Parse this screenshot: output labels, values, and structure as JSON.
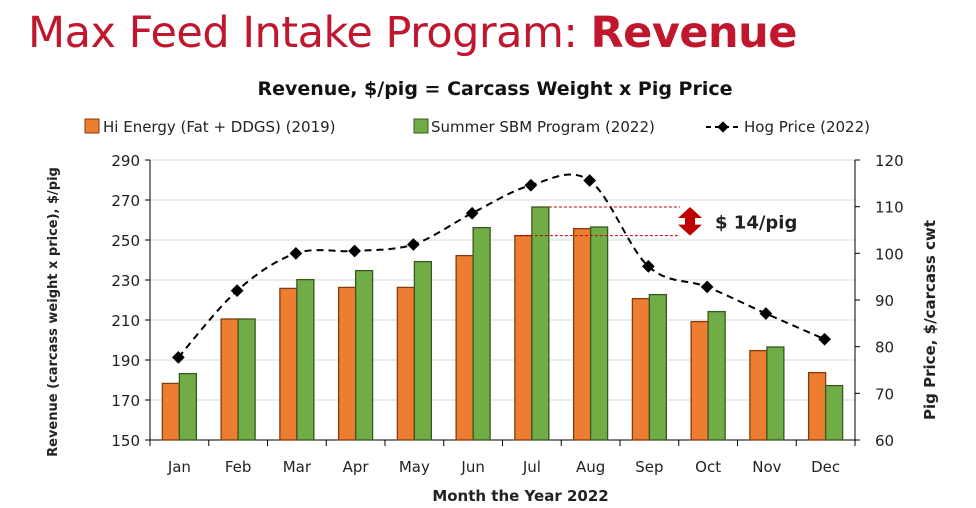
{
  "slide_title": {
    "prefix": "Max Feed Intake Program: ",
    "emphasis": "Revenue"
  },
  "colors": {
    "title": "#c0172f",
    "orange": "#ed7d31",
    "orange_border": "#843c0c",
    "green": "#70ad47",
    "green_border": "#385723",
    "line": "#000000",
    "annotation": "#c00000"
  },
  "chart_data": {
    "type": "bar",
    "title": "Revenue, $/pig = Carcass Weight x Pig Price",
    "xlabel": "Month the Year 2022",
    "ylabel": "Revenue (carcass weight x price), $/pig",
    "y2label": "Pig Price, $/carcass cwt",
    "ylim": [
      150,
      290
    ],
    "yticks": [
      150,
      170,
      190,
      210,
      230,
      250,
      270,
      290
    ],
    "y2lim": [
      60,
      120
    ],
    "y2ticks": [
      60,
      70,
      80,
      90,
      100,
      110,
      120
    ],
    "grid": true,
    "legend_position": "top",
    "categories": [
      "Jan",
      "Feb",
      "Mar",
      "Apr",
      "May",
      "Jun",
      "Jul",
      "Aug",
      "Sep",
      "Oct",
      "Nov",
      "Dec"
    ],
    "series": [
      {
        "name": "Hi Energy (Fat + DDGS) (2019)",
        "type": "bar",
        "axis": "left",
        "values": [
          178.3,
          210.5,
          225.8,
          226.3,
          226.3,
          242.2,
          252.2,
          255.7,
          220.7,
          209.2,
          194.7,
          183.7
        ]
      },
      {
        "name": "Summer SBM Program (2022)",
        "type": "bar",
        "axis": "left",
        "values": [
          183.2,
          210.5,
          230.2,
          234.7,
          239.2,
          256.2,
          266.5,
          256.5,
          222.7,
          214.2,
          196.5,
          177.2
        ]
      },
      {
        "name": "Hog Price  (2022)",
        "type": "line",
        "axis": "right",
        "values": [
          77.7,
          92.0,
          100.0,
          100.5,
          101.9,
          108.6,
          114.6,
          115.6,
          97.2,
          92.8,
          87.1,
          81.6
        ]
      }
    ],
    "annotation": {
      "text": "$ 14/pig",
      "from_value": 252.2,
      "to_value": 266.5
    }
  }
}
